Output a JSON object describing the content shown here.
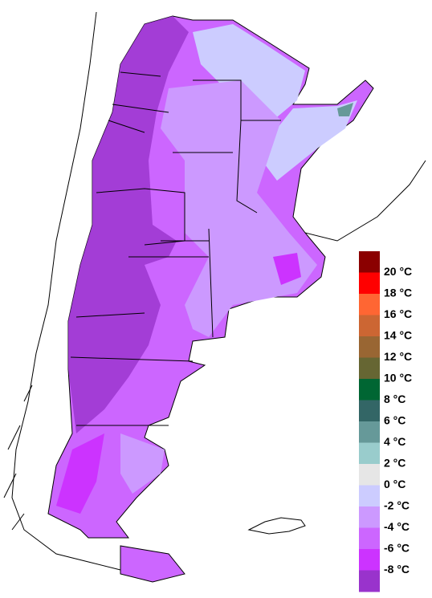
{
  "legend": {
    "labels": [
      "20 °C",
      "18 °C",
      "16 °C",
      "14 °C",
      "12 °C",
      "10 °C",
      "8 °C",
      "6 °C",
      "4 °C",
      "2 °C",
      "0 °C",
      "-2 °C",
      "-4 °C",
      "-6 °C",
      "-8 °C"
    ],
    "colors": [
      "#8b0000",
      "#ff0000",
      "#ff6633",
      "#cc6633",
      "#996633",
      "#666633",
      "#006633",
      "#336666",
      "#669999",
      "#99cccc",
      "#e6e6e6",
      "#ccccff",
      "#cc99ff",
      "#cc66ff",
      "#cc33ff",
      "#9933cc"
    ]
  }
}
